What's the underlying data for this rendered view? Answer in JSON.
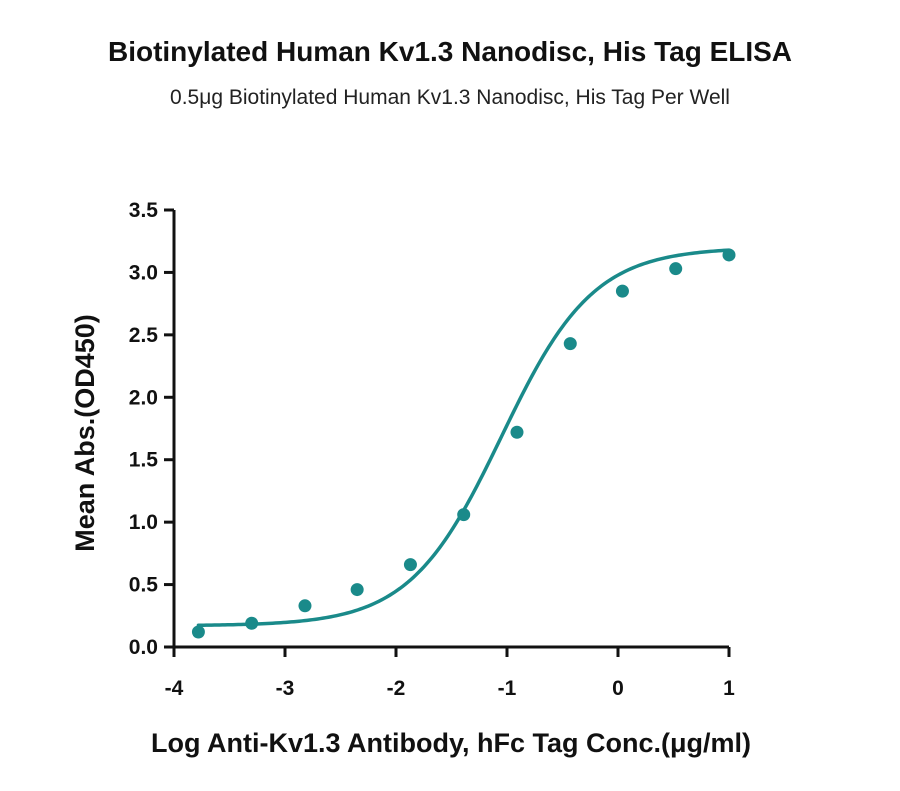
{
  "chart_data": {
    "type": "scatter",
    "title": "Biotinylated Human Kv1.3 Nanodisc, His Tag ELISA",
    "subtitle": "0.5μg Biotinylated Human Kv1.3 Nanodisc, His Tag Per Well",
    "xlabel": "Log Anti-Kv1.3 Antibody, hFc Tag Conc.(μg/ml)",
    "ylabel": "Mean Abs.(OD450)",
    "xlim": [
      -4,
      1
    ],
    "ylim": [
      0,
      3.5
    ],
    "xticks": [
      "-4",
      "-3",
      "-2",
      "-1",
      "0",
      "1"
    ],
    "yticks": [
      "0.0",
      "0.5",
      "1.0",
      "1.5",
      "2.0",
      "2.5",
      "3.0",
      "3.5"
    ],
    "grid": false,
    "color": "#1a8a8a",
    "series": [
      {
        "x": [
          -3.78,
          -3.3,
          -2.82,
          -2.35,
          -1.87,
          -1.39,
          -0.91,
          -0.43,
          0.04,
          0.52,
          1.0
        ],
        "y": [
          0.12,
          0.19,
          0.33,
          0.46,
          0.66,
          1.06,
          1.72,
          2.43,
          2.85,
          3.03,
          3.14
        ]
      }
    ],
    "fit": {
      "model": "4PL",
      "bottom": 0.17,
      "top": 3.2,
      "logEC50": -1.05,
      "hill": 1.05
    }
  }
}
